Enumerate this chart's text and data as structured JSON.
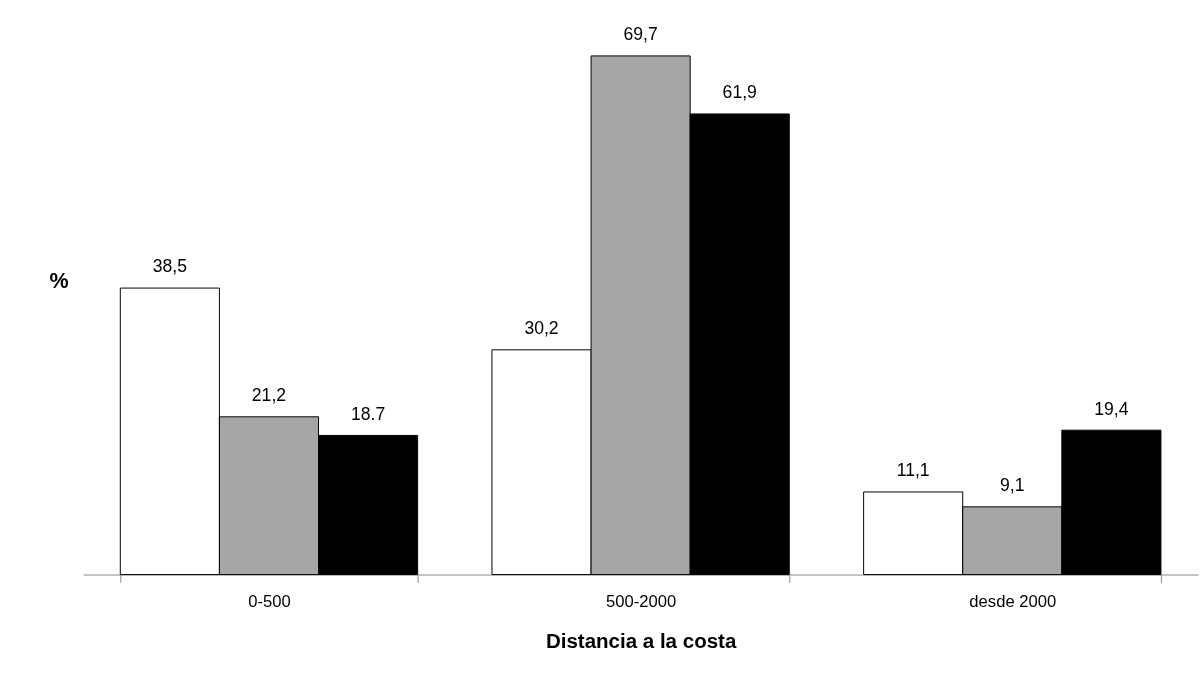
{
  "chart_data": {
    "type": "bar",
    "xlabel": "Distancia a la costa",
    "ylabel": "%",
    "categories": [
      "0-500",
      "500-2000",
      "desde 2000"
    ],
    "series": [
      {
        "color": "#ffffff",
        "values": [
          38.5,
          30.2,
          11.1
        ],
        "value_labels": [
          "38,5",
          "30,2",
          "11,1"
        ]
      },
      {
        "color": "#a6a6a6",
        "values": [
          21.2,
          69.7,
          9.1
        ],
        "value_labels": [
          "21,2",
          "69,7",
          "9,1"
        ]
      },
      {
        "color": "#000000",
        "values": [
          18.7,
          61.9,
          19.4
        ],
        "value_labels": [
          "18.7",
          "61,9",
          "19,4"
        ]
      }
    ],
    "tick_labels": "x",
    "grid": false,
    "legend": false
  }
}
